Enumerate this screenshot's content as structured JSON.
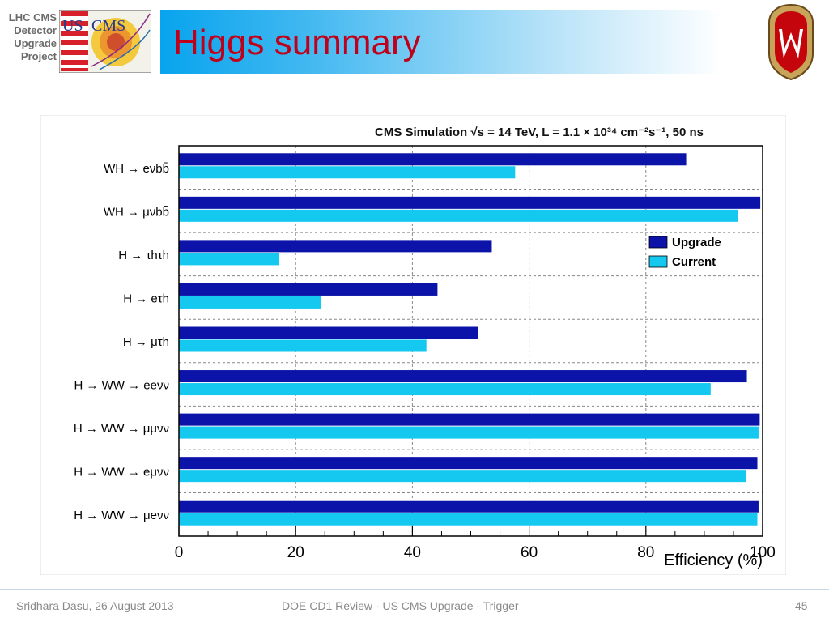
{
  "header": {
    "project_lines": [
      "LHC CMS",
      "Detector",
      "Upgrade",
      "Project"
    ],
    "logo_text": "USCMS",
    "title": "Higgs summary"
  },
  "footer": {
    "author_date": "Sridhara Dasu, 26 August 2013",
    "talk": "DOE CD1 Review - US CMS Upgrade - Trigger",
    "page": "45"
  },
  "colors": {
    "upgrade": "#0b13a8",
    "current": "#14c8f0",
    "title": "#c0001a"
  },
  "chart_data": {
    "type": "bar",
    "orientation": "horizontal",
    "title": "CMS Simulation √s = 14 TeV, L = 1.1 × 10³⁴ cm⁻²s⁻¹, 50 ns",
    "xlabel": "Efficiency (%)",
    "xlim": [
      0,
      100
    ],
    "xticks": [
      0,
      20,
      40,
      60,
      80,
      100
    ],
    "grid": true,
    "legend_position": "upper-right",
    "categories": [
      "WH → eνbb̄",
      "WH → μνbb̄",
      "H → τhτh",
      "H → eτh",
      "H → μτh",
      "H → WW → eeνν",
      "H → WW → μμνν",
      "H → WW → eμνν",
      "H → WW → μeνν"
    ],
    "series": [
      {
        "name": "Upgrade",
        "values": [
          86.9,
          99.6,
          53.6,
          44.3,
          51.2,
          97.3,
          99.5,
          99.1,
          99.3
        ]
      },
      {
        "name": "Current",
        "values": [
          57.6,
          95.7,
          17.2,
          24.3,
          42.4,
          91.1,
          99.3,
          97.2,
          99.1
        ]
      }
    ]
  }
}
